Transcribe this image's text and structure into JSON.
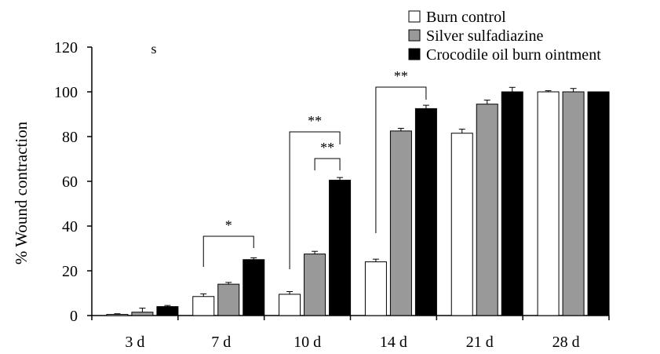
{
  "chart_data": {
    "type": "bar",
    "title": "",
    "xlabel": "",
    "ylabel": "% Wound contraction",
    "ylim": [
      0,
      120
    ],
    "yticks": [
      "0",
      "20",
      "40",
      "60",
      "80",
      "100",
      "120"
    ],
    "categories": [
      "3 d",
      "7 d",
      "10 d",
      "14 d",
      "21 d",
      "28 d"
    ],
    "series": [
      {
        "name": "Burn control",
        "color": "#ffffff",
        "values": [
          0.5,
          8.5,
          9.5,
          24,
          81.5,
          100
        ],
        "errors": [
          0.3,
          1.2,
          1.2,
          1.2,
          1.8,
          0.5
        ]
      },
      {
        "name": "Silver sulfadiazine",
        "color": "#999999",
        "values": [
          1.5,
          14,
          27.5,
          82.5,
          94.5,
          100
        ],
        "errors": [
          1.8,
          0.8,
          1.2,
          1.2,
          1.8,
          1.5
        ]
      },
      {
        "name": "Crocodile oil burn ointment",
        "color": "#000000",
        "values": [
          4,
          25,
          60.5,
          92.5,
          100,
          100
        ],
        "errors": [
          0.5,
          0.8,
          1.2,
          1.5,
          2,
          0
        ]
      }
    ],
    "grid": false,
    "legend_position": "top-right",
    "stray_text": "s",
    "significance": [
      {
        "category": "7 d",
        "from_series": 0,
        "to_series": 2,
        "label": "*"
      },
      {
        "category": "10 d",
        "from_series": 0,
        "to_series": 2,
        "label": "**"
      },
      {
        "category": "10 d",
        "from_series": 1,
        "to_series": 2,
        "label": "**"
      },
      {
        "category": "14 d",
        "from_series": 0,
        "to_series": 2,
        "label": "**"
      }
    ]
  }
}
